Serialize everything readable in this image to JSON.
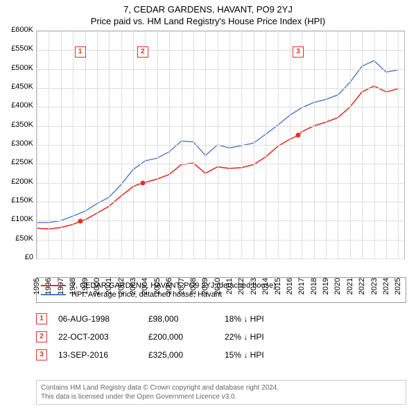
{
  "title_line1": "7, CEDAR GARDENS, HAVANT, PO9 2YJ",
  "title_line2": "Price paid vs. HM Land Registry's House Price Index (HPI)",
  "title_fontsize": 13,
  "chart": {
    "type": "line",
    "background_color": "#ffffff",
    "grid_color": "#dddddd",
    "border_color": "#bbbbbb",
    "x_start": 1995,
    "x_end": 2025.5,
    "x_ticks": [
      1995,
      1996,
      1997,
      1998,
      1999,
      2000,
      2001,
      2002,
      2003,
      2004,
      2005,
      2006,
      2007,
      2008,
      2009,
      2010,
      2011,
      2012,
      2013,
      2014,
      2015,
      2016,
      2017,
      2018,
      2019,
      2020,
      2021,
      2022,
      2023,
      2024,
      2025
    ],
    "y_min": 0,
    "y_max": 600000,
    "y_ticks": [
      0,
      50000,
      100000,
      150000,
      200000,
      250000,
      300000,
      350000,
      400000,
      450000,
      500000,
      550000,
      600000
    ],
    "y_tick_labels": [
      "£0",
      "£50K",
      "£100K",
      "£150K",
      "£200K",
      "£250K",
      "£300K",
      "£350K",
      "£400K",
      "£450K",
      "£500K",
      "£550K",
      "£600K"
    ],
    "label_fontsize": 11,
    "series": [
      {
        "id": "property",
        "color": "#e03028",
        "width": 1.6,
        "points": [
          [
            1995,
            80000
          ],
          [
            1996,
            78000
          ],
          [
            1997,
            82000
          ],
          [
            1998,
            90000
          ],
          [
            1998.6,
            98000
          ],
          [
            1999,
            102000
          ],
          [
            2000,
            120000
          ],
          [
            2001,
            138000
          ],
          [
            2002,
            165000
          ],
          [
            2003,
            190000
          ],
          [
            2003.8,
            200000
          ],
          [
            2004,
            201000
          ],
          [
            2005,
            210000
          ],
          [
            2006,
            222000
          ],
          [
            2007,
            248000
          ],
          [
            2008,
            252000
          ],
          [
            2009,
            225000
          ],
          [
            2010,
            242000
          ],
          [
            2011,
            238000
          ],
          [
            2012,
            240000
          ],
          [
            2013,
            248000
          ],
          [
            2014,
            268000
          ],
          [
            2015,
            296000
          ],
          [
            2016,
            315000
          ],
          [
            2016.7,
            325000
          ],
          [
            2017,
            335000
          ],
          [
            2018,
            350000
          ],
          [
            2019,
            360000
          ],
          [
            2020,
            372000
          ],
          [
            2021,
            400000
          ],
          [
            2022,
            440000
          ],
          [
            2023,
            455000
          ],
          [
            2024,
            440000
          ],
          [
            2025,
            448000
          ]
        ]
      },
      {
        "id": "hpi",
        "color": "#4a78c4",
        "width": 1.4,
        "points": [
          [
            1995,
            95000
          ],
          [
            1996,
            95000
          ],
          [
            1997,
            100000
          ],
          [
            1998,
            112000
          ],
          [
            1999,
            125000
          ],
          [
            2000,
            145000
          ],
          [
            2001,
            162000
          ],
          [
            2002,
            195000
          ],
          [
            2003,
            235000
          ],
          [
            2004,
            258000
          ],
          [
            2005,
            265000
          ],
          [
            2006,
            282000
          ],
          [
            2007,
            310000
          ],
          [
            2008,
            308000
          ],
          [
            2009,
            272000
          ],
          [
            2010,
            300000
          ],
          [
            2011,
            292000
          ],
          [
            2012,
            298000
          ],
          [
            2013,
            305000
          ],
          [
            2014,
            328000
          ],
          [
            2015,
            352000
          ],
          [
            2016,
            378000
          ],
          [
            2017,
            398000
          ],
          [
            2018,
            412000
          ],
          [
            2019,
            420000
          ],
          [
            2020,
            432000
          ],
          [
            2021,
            465000
          ],
          [
            2022,
            508000
          ],
          [
            2023,
            522000
          ],
          [
            2024,
            492000
          ],
          [
            2025,
            498000
          ]
        ]
      }
    ],
    "markers": [
      {
        "n": "1",
        "color": "#e03028",
        "x": 1998.6,
        "y": 98000,
        "box_y": 560000
      },
      {
        "n": "2",
        "color": "#e03028",
        "x": 2003.8,
        "y": 200000,
        "box_y": 560000
      },
      {
        "n": "3",
        "color": "#e03028",
        "x": 2016.7,
        "y": 325000,
        "box_y": 560000
      }
    ]
  },
  "legend": [
    {
      "color": "#e03028",
      "label": "7, CEDAR GARDENS, HAVANT, PO9 2YJ (detached house)"
    },
    {
      "color": "#4a78c4",
      "label": "HPI: Average price, detached house, Havant"
    }
  ],
  "transactions": [
    {
      "n": "1",
      "color": "#e03028",
      "date": "06-AUG-1998",
      "price": "£98,000",
      "pct": "18% ↓ HPI"
    },
    {
      "n": "2",
      "color": "#e03028",
      "date": "22-OCT-2003",
      "price": "£200,000",
      "pct": "22% ↓ HPI"
    },
    {
      "n": "3",
      "color": "#e03028",
      "date": "13-SEP-2016",
      "price": "£325,000",
      "pct": "15% ↓ HPI"
    }
  ],
  "footer_line1": "Contains HM Land Registry data © Crown copyright and database right 2024.",
  "footer_line2": "This data is licensed under the Open Government Licence v3.0."
}
